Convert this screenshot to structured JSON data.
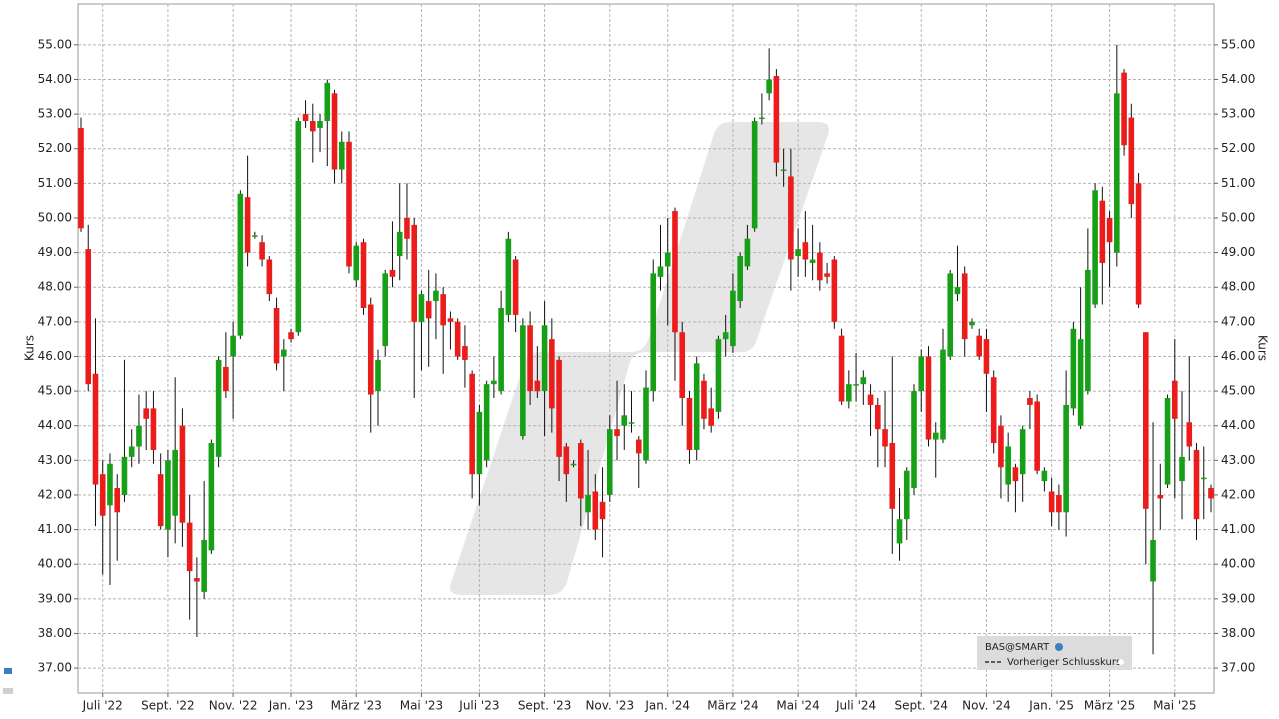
{
  "chart_data": {
    "type": "candlestick",
    "y_label": "Kurs",
    "up_color": "#17a017",
    "down_color": "#ea1c1c",
    "grid": true,
    "ylim": [
      36.28,
      56.18
    ],
    "yticks": [
      {
        "value": 37,
        "label": "37.00"
      },
      {
        "value": 38,
        "label": "38.00"
      },
      {
        "value": 39,
        "label": "39.00"
      },
      {
        "value": 40,
        "label": "40.00"
      },
      {
        "value": 41,
        "label": "41.00"
      },
      {
        "value": 42,
        "label": "42.00"
      },
      {
        "value": 43,
        "label": "43.00"
      },
      {
        "value": 44,
        "label": "44.00"
      },
      {
        "value": 45,
        "label": "45.00"
      },
      {
        "value": 46,
        "label": "46.00"
      },
      {
        "value": 47,
        "label": "47.00"
      },
      {
        "value": 48,
        "label": "48.00"
      },
      {
        "value": 49,
        "label": "49.00"
      },
      {
        "value": 50,
        "label": "50.00"
      },
      {
        "value": 51,
        "label": "51.00"
      },
      {
        "value": 52,
        "label": "52.00"
      },
      {
        "value": 53,
        "label": "53.00"
      },
      {
        "value": 54,
        "label": "54.00"
      },
      {
        "value": 55,
        "label": "55.00"
      }
    ],
    "legend": {
      "symbol": "BAS@SMART",
      "line": "Vorheriger Schlusskurs"
    },
    "categories": [
      null,
      null,
      null,
      "Juli '22",
      null,
      null,
      null,
      null,
      null,
      null,
      null,
      null,
      "Sept. '22",
      null,
      null,
      null,
      null,
      null,
      null,
      null,
      null,
      "Nov. '22",
      null,
      null,
      null,
      null,
      null,
      null,
      null,
      "Jan. '23",
      null,
      null,
      null,
      null,
      null,
      null,
      null,
      null,
      "März '23",
      null,
      null,
      null,
      null,
      null,
      null,
      null,
      null,
      "Mai '23",
      null,
      null,
      null,
      null,
      null,
      null,
      null,
      "Juli '23",
      null,
      null,
      null,
      null,
      null,
      null,
      null,
      null,
      "Sept. '23",
      null,
      null,
      null,
      null,
      null,
      null,
      null,
      null,
      "Nov. '23",
      null,
      null,
      null,
      null,
      null,
      null,
      null,
      "Jan. '24",
      null,
      null,
      null,
      null,
      null,
      null,
      null,
      null,
      "März '24",
      null,
      null,
      null,
      null,
      null,
      null,
      null,
      null,
      "Mai '24",
      null,
      null,
      null,
      null,
      null,
      null,
      null,
      "Juli '24",
      null,
      null,
      null,
      null,
      null,
      null,
      null,
      null,
      "Sept. '24",
      null,
      null,
      null,
      null,
      null,
      null,
      null,
      null,
      "Nov. '24",
      null,
      null,
      null,
      null,
      null,
      null,
      null,
      null,
      "Jan. '25",
      null,
      null,
      null,
      null,
      null,
      null,
      null,
      "März '25",
      null,
      null,
      null,
      null,
      null,
      null,
      null,
      null,
      "Mai '25",
      null,
      null,
      null,
      null,
      null
    ],
    "open": [
      52.6,
      49.1,
      45.5,
      42.6,
      41.7,
      42.2,
      42.0,
      43.1,
      43.4,
      44.5,
      44.5,
      42.6,
      41.0,
      41.4,
      44.0,
      41.2,
      39.6,
      39.2,
      40.4,
      43.1,
      45.7,
      46.0,
      46.6,
      50.6,
      49.5,
      49.3,
      48.8,
      47.4,
      46.0,
      46.7,
      46.7,
      53.0,
      52.8,
      52.6,
      52.8,
      53.6,
      51.4,
      52.2,
      48.2,
      49.3,
      47.5,
      45.0,
      46.3,
      48.5,
      48.9,
      50.0,
      49.8,
      47.0,
      47.6,
      47.6,
      47.8,
      47.1,
      47.0,
      46.3,
      45.5,
      42.6,
      43.0,
      45.2,
      45.0,
      47.2,
      48.8,
      43.7,
      46.9,
      45.3,
      45.0,
      46.5,
      45.9,
      43.4,
      42.9,
      43.5,
      41.5,
      42.1,
      41.8,
      42.0,
      43.9,
      44.0,
      44.1,
      43.6,
      43.0,
      45.0,
      48.3,
      48.6,
      50.2,
      46.7,
      44.8,
      43.3,
      45.3,
      44.5,
      44.4,
      46.5,
      46.3,
      47.6,
      48.6,
      49.7,
      52.9,
      53.6,
      54.1,
      51.4,
      51.2,
      48.9,
      49.3,
      48.7,
      49.0,
      48.4,
      48.8,
      46.6,
      44.7,
      45.2,
      45.2,
      44.9,
      44.6,
      43.9,
      43.5,
      40.6,
      41.3,
      42.2,
      45.0,
      46.0,
      43.6,
      43.6,
      46.0,
      47.8,
      48.4,
      46.9,
      46.6,
      46.5,
      45.4,
      44.0,
      42.3,
      42.8,
      42.6,
      44.8,
      44.7,
      42.4,
      42.1,
      42.0,
      41.5,
      44.5,
      44.0,
      45.0,
      47.5,
      50.5,
      50.0,
      49.0,
      54.2,
      52.9,
      51.0,
      46.7,
      39.5,
      42.0,
      42.3,
      45.3,
      42.4,
      44.1,
      43.3,
      42.5,
      42.2
    ],
    "high": [
      52.9,
      49.8,
      47.1,
      43.0,
      43.2,
      42.6,
      45.9,
      43.9,
      44.9,
      45.0,
      45.0,
      43.2,
      43.3,
      45.4,
      44.5,
      42.0,
      40.2,
      42.4,
      43.6,
      46.0,
      46.7,
      47.0,
      50.8,
      51.8,
      49.6,
      49.5,
      48.9,
      47.7,
      46.5,
      46.8,
      52.9,
      53.4,
      53.3,
      53.0,
      54.0,
      53.7,
      52.5,
      52.5,
      49.3,
      49.4,
      47.7,
      46.2,
      48.5,
      49.9,
      51.0,
      51.0,
      50.0,
      47.9,
      48.5,
      48.4,
      48.0,
      47.3,
      47.1,
      46.9,
      45.6,
      44.6,
      45.3,
      46.0,
      47.9,
      49.6,
      48.9,
      47.1,
      47.3,
      46.3,
      47.6,
      47.1,
      46.0,
      43.5,
      43.0,
      43.6,
      43.3,
      42.6,
      42.8,
      44.3,
      45.3,
      45.2,
      45.0,
      43.7,
      45.6,
      48.8,
      49.8,
      50.0,
      50.3,
      47.0,
      45.0,
      46.0,
      45.5,
      45.1,
      46.6,
      47.2,
      48.4,
      49.0,
      49.8,
      52.9,
      53.6,
      54.9,
      54.3,
      52.0,
      52.0,
      49.7,
      50.2,
      49.8,
      49.3,
      48.7,
      48.9,
      46.8,
      45.6,
      46.1,
      45.6,
      45.2,
      44.8,
      45.0,
      46.0,
      42.2,
      42.8,
      45.2,
      46.2,
      46.3,
      44.1,
      46.8,
      48.5,
      49.2,
      48.6,
      47.1,
      46.8,
      46.8,
      45.6,
      44.3,
      43.8,
      42.9,
      44.0,
      45.0,
      44.9,
      42.8,
      42.5,
      42.3,
      45.6,
      47.0,
      48.0,
      49.7,
      51.0,
      50.9,
      50.2,
      55.0,
      54.3,
      53.3,
      51.3,
      46.7,
      44.1,
      42.9,
      44.9,
      46.5,
      45.0,
      46.0,
      43.5,
      43.4,
      42.3
    ],
    "low": [
      49.6,
      45.0,
      41.1,
      39.7,
      39.4,
      40.1,
      41.8,
      42.8,
      42.9,
      43.3,
      42.9,
      41.0,
      40.2,
      40.6,
      40.5,
      38.4,
      37.9,
      39.0,
      40.3,
      42.8,
      44.8,
      44.2,
      46.5,
      48.6,
      49.4,
      48.6,
      47.6,
      45.6,
      45.0,
      46.4,
      46.6,
      52.6,
      51.6,
      51.9,
      51.5,
      51.0,
      51.0,
      48.4,
      48.0,
      47.2,
      43.8,
      44.0,
      46.0,
      48.0,
      48.2,
      48.8,
      44.8,
      45.6,
      45.7,
      46.5,
      45.5,
      46.2,
      45.9,
      45.1,
      41.9,
      41.7,
      42.8,
      44.8,
      44.9,
      47.0,
      46.7,
      43.6,
      44.6,
      44.8,
      43.7,
      43.8,
      42.4,
      41.8,
      42.8,
      41.1,
      41.0,
      40.7,
      40.2,
      41.8,
      43.0,
      43.3,
      43.8,
      42.2,
      42.9,
      44.7,
      47.9,
      46.9,
      45.3,
      44.0,
      42.9,
      43.0,
      43.9,
      43.8,
      44.2,
      46.0,
      46.1,
      47.4,
      48.5,
      49.6,
      52.7,
      53.4,
      51.2,
      50.9,
      47.9,
      48.3,
      48.3,
      48.2,
      47.9,
      48.1,
      46.8,
      44.6,
      44.5,
      44.7,
      44.6,
      43.7,
      42.8,
      42.8,
      40.3,
      40.1,
      40.7,
      42.0,
      44.4,
      43.4,
      42.5,
      43.5,
      45.9,
      47.6,
      46.0,
      46.8,
      45.9,
      44.4,
      43.2,
      41.9,
      41.8,
      41.5,
      41.8,
      43.9,
      42.6,
      42.1,
      41.1,
      41.0,
      40.8,
      44.3,
      43.9,
      44.9,
      47.4,
      47.5,
      48.0,
      48.6,
      51.8,
      50.0,
      47.4,
      40.0,
      37.4,
      41.0,
      42.2,
      41.9,
      41.3,
      43.0,
      40.7,
      41.3,
      41.5
    ],
    "close": [
      49.7,
      45.2,
      42.3,
      41.4,
      42.9,
      41.5,
      43.1,
      43.4,
      44.0,
      44.2,
      43.3,
      41.1,
      43.0,
      43.3,
      41.2,
      39.8,
      39.5,
      40.7,
      43.5,
      45.9,
      45.0,
      46.6,
      50.7,
      49.0,
      49.5,
      48.8,
      47.8,
      45.8,
      46.2,
      46.5,
      52.8,
      52.8,
      52.5,
      52.8,
      53.9,
      51.4,
      52.2,
      48.6,
      49.2,
      47.4,
      44.9,
      45.9,
      48.4,
      48.3,
      49.6,
      49.4,
      47.0,
      47.8,
      47.1,
      47.9,
      46.9,
      47.0,
      46.0,
      45.9,
      42.6,
      44.4,
      45.2,
      45.3,
      47.4,
      49.4,
      47.2,
      46.9,
      45.0,
      45.0,
      46.9,
      44.5,
      43.1,
      42.6,
      42.9,
      41.9,
      42.0,
      41.0,
      41.3,
      43.9,
      43.7,
      44.3,
      44.1,
      43.2,
      45.1,
      48.4,
      48.6,
      49.0,
      46.7,
      44.8,
      43.3,
      45.8,
      44.2,
      44.0,
      46.5,
      46.7,
      47.9,
      48.9,
      49.4,
      52.8,
      52.9,
      54.0,
      51.6,
      51.4,
      48.8,
      49.1,
      48.8,
      48.8,
      48.2,
      48.3,
      47.0,
      44.7,
      45.2,
      45.2,
      45.4,
      44.6,
      43.9,
      43.4,
      41.6,
      41.3,
      42.7,
      45.0,
      46.0,
      43.6,
      43.8,
      46.2,
      48.4,
      48.0,
      46.5,
      47.0,
      46.0,
      45.5,
      43.5,
      42.8,
      43.4,
      42.4,
      43.9,
      44.6,
      42.7,
      42.7,
      41.5,
      41.5,
      44.6,
      46.8,
      46.5,
      48.5,
      50.8,
      48.7,
      49.3,
      53.6,
      52.1,
      50.4,
      47.5,
      41.6,
      40.7,
      41.9,
      44.8,
      44.2,
      43.1,
      43.4,
      41.3,
      42.5,
      41.9
    ]
  }
}
